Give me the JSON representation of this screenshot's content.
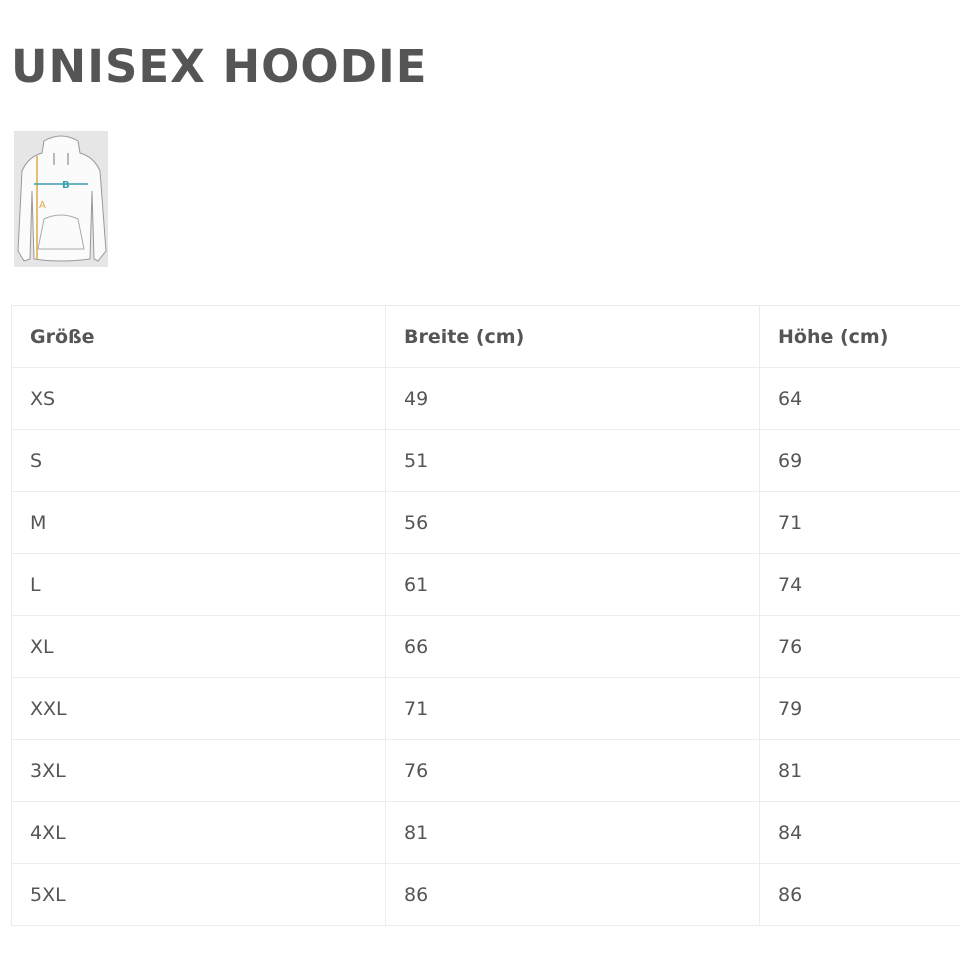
{
  "title": "UNISEX HOODIE",
  "diagram": {
    "labels": [
      "A",
      "B"
    ],
    "colors": {
      "A": "#e0a84a",
      "B": "#3a9fb0"
    }
  },
  "table": {
    "headers": [
      "Größe",
      "Breite (cm)",
      "Höhe (cm)"
    ],
    "rows": [
      [
        "XS",
        "49",
        "64"
      ],
      [
        "S",
        "51",
        "69"
      ],
      [
        "M",
        "56",
        "71"
      ],
      [
        "L",
        "61",
        "74"
      ],
      [
        "XL",
        "66",
        "76"
      ],
      [
        "XXL",
        "71",
        "79"
      ],
      [
        "3XL",
        "76",
        "81"
      ],
      [
        "4XL",
        "81",
        "84"
      ],
      [
        "5XL",
        "86",
        "86"
      ]
    ]
  }
}
